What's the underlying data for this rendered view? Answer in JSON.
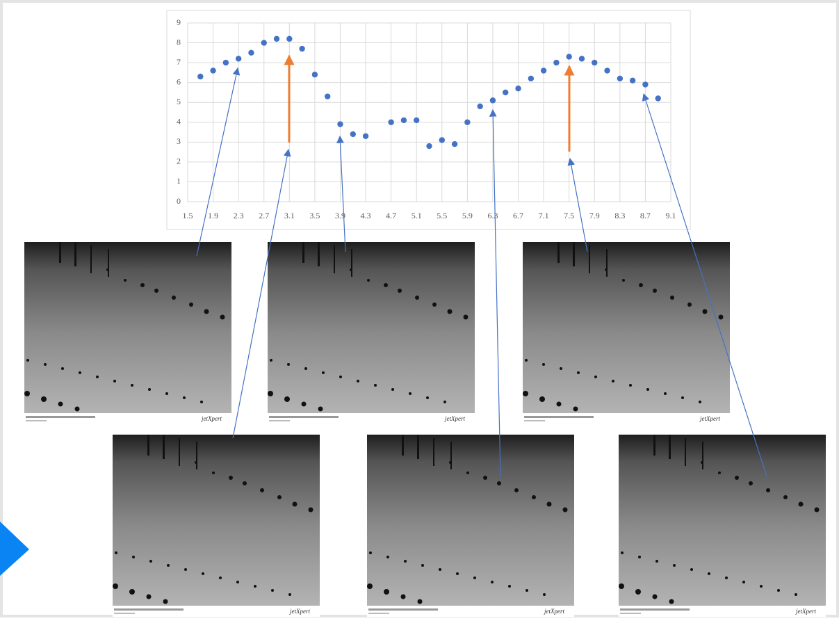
{
  "chart_data": {
    "type": "scatter",
    "x": [
      1.7,
      1.9,
      2.1,
      2.3,
      2.5,
      2.7,
      2.9,
      3.1,
      3.3,
      3.5,
      3.7,
      3.9,
      4.1,
      4.3,
      4.7,
      4.9,
      5.1,
      5.3,
      5.5,
      5.7,
      5.9,
      6.1,
      6.3,
      6.5,
      6.7,
      6.9,
      7.1,
      7.3,
      7.5,
      7.7,
      7.9,
      8.1,
      8.3,
      8.5,
      8.7,
      8.9
    ],
    "values": [
      6.3,
      6.6,
      7.0,
      7.2,
      7.5,
      8.0,
      8.2,
      8.2,
      7.7,
      6.4,
      5.3,
      3.9,
      3.4,
      3.3,
      4.0,
      4.1,
      4.1,
      2.8,
      3.1,
      2.9,
      4.0,
      4.8,
      5.1,
      5.5,
      5.7,
      6.2,
      6.6,
      7.0,
      7.3,
      7.2,
      7.0,
      6.6,
      6.2,
      6.1,
      5.9,
      5.2
    ],
    "color": "#4472c4",
    "xlim": [
      1.5,
      9.1
    ],
    "xticks": [
      1.5,
      1.9,
      2.3,
      2.7,
      3.1,
      3.5,
      3.9,
      4.3,
      4.7,
      5.1,
      5.5,
      5.9,
      6.3,
      6.7,
      7.1,
      7.5,
      7.9,
      8.3,
      8.7,
      9.1
    ],
    "ylim": [
      0,
      9
    ],
    "yticks": [
      0,
      1,
      2,
      3,
      4,
      5,
      6,
      7,
      8,
      9
    ],
    "grid": true
  },
  "panels": {
    "logo": "jetXpert"
  }
}
